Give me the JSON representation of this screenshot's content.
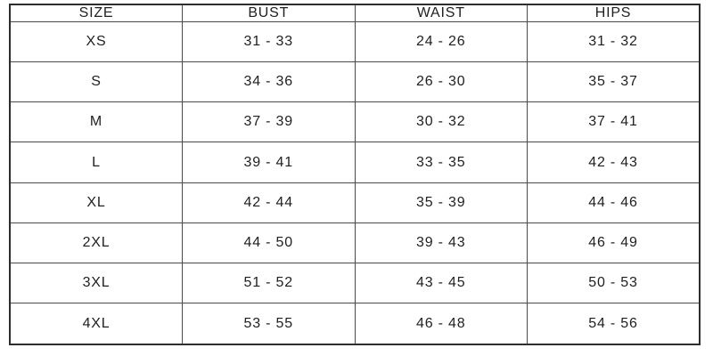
{
  "page": {
    "background": "#ffffff"
  },
  "colors": {
    "outer_border": "#2e2e2e",
    "inner_border": "#4a4a4a",
    "text": "#1f1f1f"
  },
  "chart_data": {
    "type": "table",
    "columns": [
      "SIZE",
      "BUST",
      "WAIST",
      "HIPS"
    ],
    "rows": [
      [
        "XS",
        "31 - 33",
        "24 - 26",
        "31 - 32"
      ],
      [
        "S",
        "34 - 36",
        "26 - 30",
        "35 - 37"
      ],
      [
        "M",
        "37 - 39",
        "30 - 32",
        "37 - 41"
      ],
      [
        "L",
        "39 - 41",
        "33 - 35",
        "42 - 43"
      ],
      [
        "XL",
        "42 - 44",
        "35 - 39",
        "44 - 46"
      ],
      [
        "2XL",
        "44 - 50",
        "39 - 43",
        "46 - 49"
      ],
      [
        "3XL",
        "51 - 52",
        "43 - 45",
        "50 - 53"
      ],
      [
        "4XL",
        "53 - 55",
        "46 - 48",
        "54 - 56"
      ]
    ],
    "layout": {
      "grid": "full-borders",
      "column_count": 4,
      "row_count": 9,
      "equal_column_widths": true
    }
  }
}
